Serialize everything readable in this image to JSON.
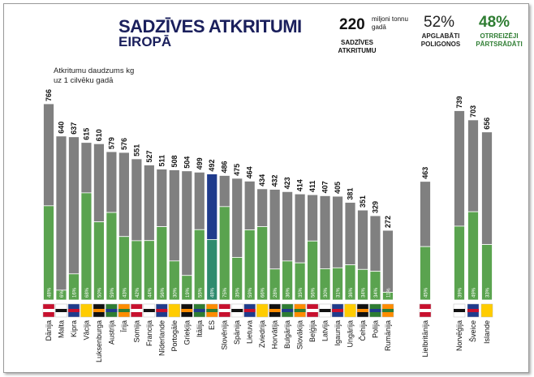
{
  "header": {
    "title": "SADZĪVES ATKRITUMI",
    "subtitle": "EIROPĀ",
    "stat1_value": "220",
    "stat1_unit_line1": "miljoni tonnu",
    "stat1_unit_line2": "gadā",
    "stat1_label_line1": "SADZĪVES",
    "stat1_label_line2": "ATKRITUMU",
    "stat2_value": "52%",
    "stat2_label_line1": "APGLABĀTI",
    "stat2_label_line2": "POLIGONOS",
    "stat3_value": "48%",
    "stat3_label_line1": "OTRREIZĒJI",
    "stat3_label_line2": "PĀRTSRĀDĀTI"
  },
  "colors": {
    "landfill": "#808080",
    "recycled": "#5aa34f",
    "eu_top": "#1f3b8c",
    "eu_bottom": "#2e8b6e",
    "title": "#1a1f5c",
    "recycled_text": "#2e7d32"
  },
  "chart_data": {
    "type": "bar",
    "ylabel_line1": "Atkritumu daudzums kg",
    "ylabel_line2": "uz 1 cilvēku gadā",
    "ylim": [
      0,
      766
    ],
    "categories": [
      "Dānija",
      "Malta",
      "Kipra",
      "Vācija",
      "Luksenburga",
      "Austrija",
      "Īrija",
      "Somija",
      "Francija",
      "Nīderlande",
      "Portogāle",
      "Grieķija",
      "Itālija",
      "ES",
      "Slovēnija",
      "Spānija",
      "Lietuva",
      "Zviedrija",
      "Horvātija",
      "Bulgārija",
      "Slovākija",
      "Beļģija",
      "Latvija",
      "Igaunija",
      "Ungārija",
      "Čehija",
      "Polija",
      "Rumānija",
      "Lielbritānija",
      "Norvēģija",
      "Šveice",
      "Islande"
    ],
    "values": [
      766,
      640,
      637,
      615,
      610,
      579,
      576,
      551,
      527,
      511,
      508,
      504,
      499,
      492,
      486,
      475,
      464,
      434,
      432,
      423,
      414,
      411,
      407,
      405,
      381,
      351,
      329,
      272,
      463,
      739,
      703,
      656
    ],
    "recycled_percent": [
      "48%",
      "6%",
      "16%",
      "68%",
      "50%",
      "59%",
      "43%",
      "42%",
      "44%",
      "56%",
      "30%",
      "19%",
      "55%",
      "48%",
      "75%",
      "35%",
      "59%",
      "66%",
      "28%",
      "36%",
      "35%",
      "56%",
      "30%",
      "31%",
      "36%",
      "34%",
      "34%",
      "11%",
      "45%",
      "39%",
      "49%",
      "33%"
    ],
    "groups": [
      "EU",
      "EU",
      "EU",
      "EU",
      "EU",
      "EU",
      "EU",
      "EU",
      "EU",
      "EU",
      "EU",
      "EU",
      "EU",
      "EU",
      "EU",
      "EU",
      "EU",
      "EU",
      "EU",
      "EU",
      "EU",
      "EU",
      "EU",
      "EU",
      "EU",
      "EU",
      "EU",
      "EU",
      "UK",
      "EFTA",
      "EFTA",
      "EFTA"
    ]
  }
}
